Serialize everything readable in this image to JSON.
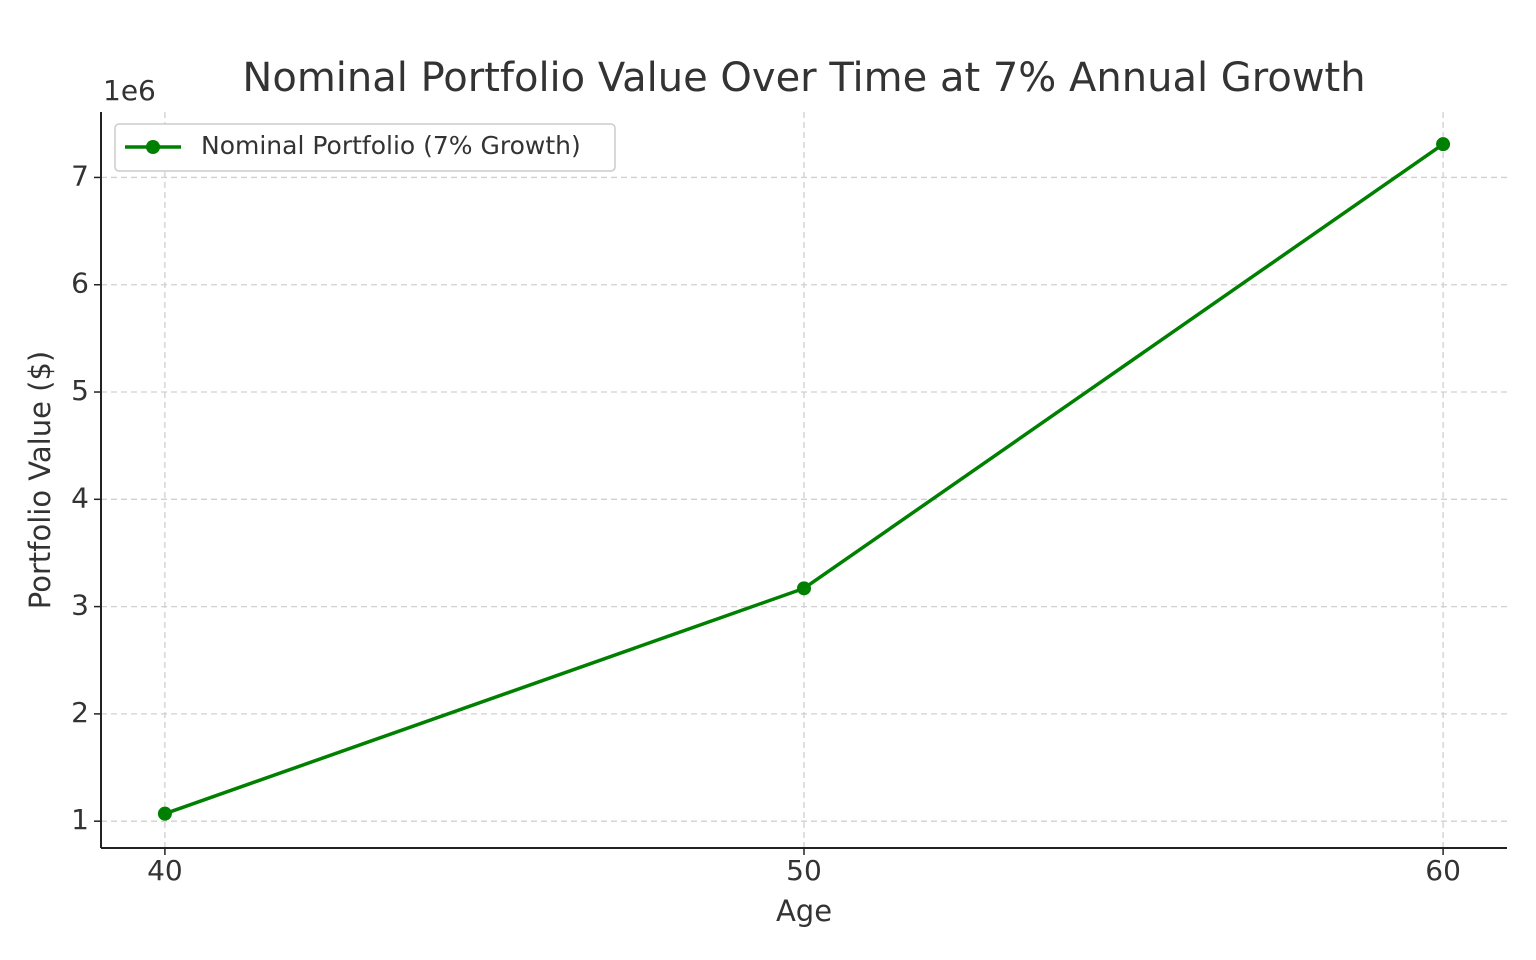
{
  "chart_data": {
    "type": "line",
    "title": "Nominal Portfolio Value Over Time at 7% Annual Growth",
    "x_label": "Age",
    "y_label": "Portfolio Value ($)",
    "y_offset_label": "1e6",
    "x": [
      40,
      50,
      60
    ],
    "series": [
      {
        "name": "Nominal Portfolio (7% Growth)",
        "color": "#008000",
        "values": [
          1070000,
          3170000,
          7310000
        ]
      }
    ],
    "xlim": [
      39,
      61
    ],
    "xticks": [
      40,
      50,
      60
    ],
    "ylim": [
      750000,
      7610000
    ],
    "yticks": [
      {
        "value": 1000000,
        "label": "1"
      },
      {
        "value": 2000000,
        "label": "2"
      },
      {
        "value": 3000000,
        "label": "3"
      },
      {
        "value": 4000000,
        "label": "4"
      },
      {
        "value": 5000000,
        "label": "5"
      },
      {
        "value": 6000000,
        "label": "6"
      },
      {
        "value": 7000000,
        "label": "7"
      }
    ],
    "grid": true,
    "legend": "upper left"
  }
}
